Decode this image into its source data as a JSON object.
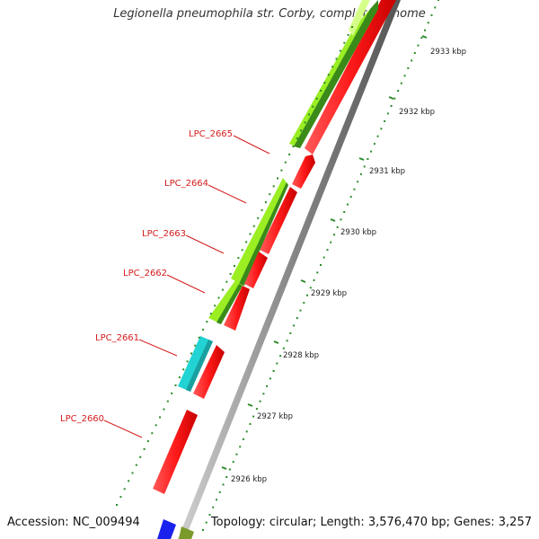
{
  "title": "Legionella pneumophila str. Corby, complete genome",
  "footer": {
    "accession": "Accession: NC_009494",
    "summary": "Topology: circular; Length: 3,576,470 bp; Genes: 3,257"
  },
  "colors": {
    "gene_red": "#ff2020",
    "gene_cyan": "#22d3d3",
    "gene_lightgreen": "#9aee22",
    "gene_darkgreen": "#3a8a1a",
    "ruler_green": "#2a8a2a",
    "backbone_gray": "#999999",
    "label_red": "#d41c1c",
    "blue": "#1a22ee",
    "olive": "#7a9a2a"
  },
  "scale": {
    "ticks": [
      {
        "label": "2926 kbp"
      },
      {
        "label": "2927 kbp"
      },
      {
        "label": "2928 kbp"
      },
      {
        "label": "2929 kbp"
      },
      {
        "label": "2930 kbp"
      },
      {
        "label": "2931 kbp"
      },
      {
        "label": "2932 kbp"
      },
      {
        "label": "2933 kbp"
      }
    ]
  },
  "genes": [
    {
      "label": "LPC_2665"
    },
    {
      "label": "LPC_2664"
    },
    {
      "label": "LPC_2663"
    },
    {
      "label": "LPC_2662"
    },
    {
      "label": "LPC_2661"
    },
    {
      "label": "LPC_2660"
    }
  ]
}
